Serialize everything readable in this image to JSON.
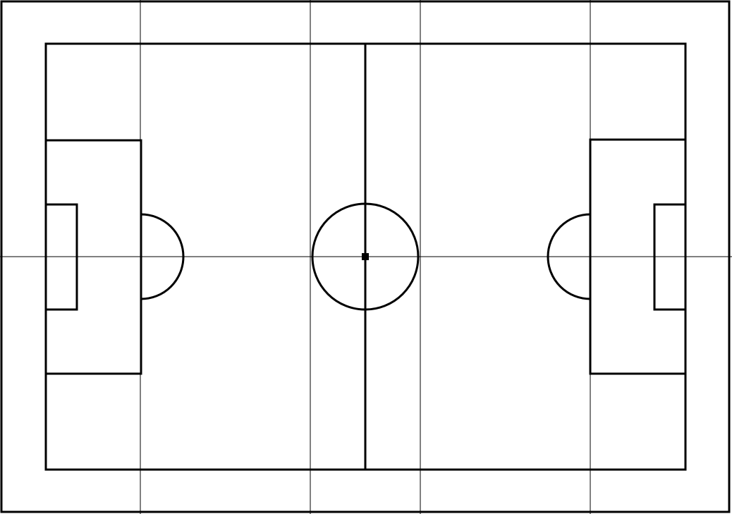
{
  "diagram": {
    "subject": "football-pitch",
    "colors": {
      "background": "#ffffff",
      "line": "#000000"
    },
    "elements": [
      "outer-frame",
      "pitch-boundary",
      "halfway-line",
      "centre-circle",
      "centre-spot",
      "left-penalty-area",
      "left-goal-area",
      "left-penalty-arc",
      "right-penalty-area",
      "right-goal-area",
      "right-penalty-arc",
      "guide-lines"
    ]
  }
}
